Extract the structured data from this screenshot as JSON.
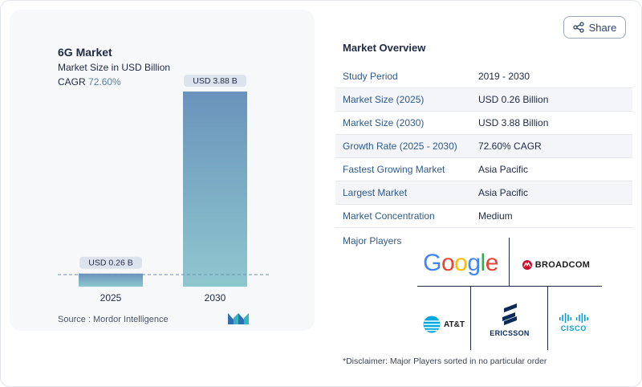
{
  "share": {
    "label": "Share",
    "icon": "share-icon"
  },
  "chart": {
    "title": "6G Market",
    "subtitle": "Market Size in USD Billion",
    "cagr_label": "CAGR",
    "cagr_value": "72.60%",
    "source": "Source :  Mordor Intelligence"
  },
  "chart_data": {
    "type": "bar",
    "categories": [
      "2025",
      "2030"
    ],
    "values": [
      0.26,
      3.88
    ],
    "data_labels": [
      "USD 0.26 B",
      "USD 3.88 B"
    ],
    "title": "6G Market",
    "subtitle": "Market Size in USD Billion",
    "xlabel": "",
    "ylabel": "",
    "ylim": [
      0,
      3.88
    ],
    "grid": false,
    "colors": {
      "bar_top": "#6a93bb",
      "bar_bottom": "#8fc7cf",
      "label_bg": "#dde3ec"
    }
  },
  "overview": {
    "title": "Market Overview",
    "rows": [
      {
        "label": "Study Period",
        "value": "2019 - 2030"
      },
      {
        "label": "Market Size (2025)",
        "value": "USD 0.26 Billion"
      },
      {
        "label": "Market Size (2030)",
        "value": "USD 3.88 Billion"
      },
      {
        "label": "Growth Rate (2025 - 2030)",
        "value": "72.60% CAGR"
      },
      {
        "label": "Fastest Growing Market",
        "value": "Asia Pacific"
      },
      {
        "label": "Largest Market",
        "value": "Asia Pacific"
      },
      {
        "label": "Market Concentration",
        "value": "Medium"
      }
    ]
  },
  "players": {
    "label": "Major Players",
    "logos": {
      "google": "Google",
      "broadcom": "BROADCOM",
      "att": "AT&T",
      "ericsson": "ERICSSON",
      "cisco": "CISCO"
    }
  },
  "disclaimer": "*Disclaimer: Major Players sorted in no particular order"
}
